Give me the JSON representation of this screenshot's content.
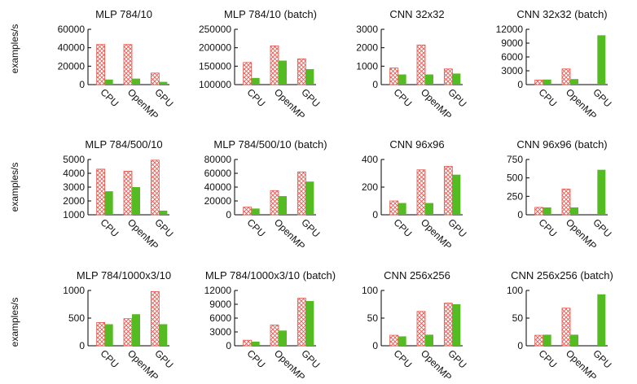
{
  "ylabel": "examples/s",
  "colors": {
    "hatch": "#e8524a",
    "solid": "#55bb22"
  },
  "chart_data": [
    {
      "type": "bar",
      "title": "MLP 784/10",
      "categories": [
        "CPU",
        "OpenMP",
        "GPU"
      ],
      "ylim": [
        0,
        60000
      ],
      "yticks": [
        "60000",
        "40000",
        "20000",
        "0"
      ],
      "yticks_values": [
        60000,
        40000,
        20000,
        0
      ],
      "series": [
        {
          "values": [
            43500,
            43500,
            12500
          ]
        },
        {
          "values": [
            5500,
            6500,
            3000
          ]
        }
      ]
    },
    {
      "type": "bar",
      "title": "MLP 784/10 (batch)",
      "categories": [
        "CPU",
        "OpenMP",
        "GPU"
      ],
      "ylim": [
        100000,
        250000
      ],
      "yticks": [
        "250000",
        "200000",
        "150000",
        "100000"
      ],
      "yticks_values": [
        250000,
        200000,
        150000,
        100000
      ],
      "series": [
        {
          "values": [
            160000,
            205000,
            170000
          ]
        },
        {
          "values": [
            118000,
            165000,
            142000
          ]
        }
      ]
    },
    {
      "type": "bar",
      "title": "CNN 32x32",
      "categories": [
        "CPU",
        "OpenMP",
        "GPU"
      ],
      "ylim": [
        0,
        3000
      ],
      "yticks": [
        "3000",
        "2000",
        "1000",
        "0"
      ],
      "yticks_values": [
        3000,
        2000,
        1000,
        0
      ],
      "series": [
        {
          "values": [
            900,
            2150,
            850
          ]
        },
        {
          "values": [
            550,
            550,
            600
          ]
        }
      ]
    },
    {
      "type": "bar",
      "title": "CNN 32x32 (batch)",
      "categories": [
        "CPU",
        "OpenMP",
        "GPU"
      ],
      "ylim": [
        0,
        12000
      ],
      "yticks": [
        "12000",
        "9000",
        "6000",
        "3000",
        "0"
      ],
      "yticks_values": [
        12000,
        9000,
        6000,
        3000,
        0
      ],
      "series": [
        {
          "values": [
            1000,
            3400,
            0
          ]
        },
        {
          "values": [
            1100,
            1200,
            10700
          ]
        }
      ]
    },
    {
      "type": "bar",
      "title": "MLP 784/500/10",
      "categories": [
        "CPU",
        "OpenMP",
        "GPU"
      ],
      "ylim": [
        1000,
        5000
      ],
      "yticks": [
        "5000",
        "4000",
        "3000",
        "2000",
        "1000"
      ],
      "yticks_values": [
        5000,
        4000,
        3000,
        2000,
        1000
      ],
      "series": [
        {
          "values": [
            4300,
            4150,
            4950
          ]
        },
        {
          "values": [
            2700,
            3000,
            1300
          ]
        }
      ]
    },
    {
      "type": "bar",
      "title": "MLP 784/500/10 (batch)",
      "categories": [
        "CPU",
        "OpenMP",
        "GPU"
      ],
      "ylim": [
        0,
        80000
      ],
      "yticks": [
        "80000",
        "60000",
        "40000",
        "20000",
        "0"
      ],
      "yticks_values": [
        80000,
        60000,
        40000,
        20000,
        0
      ],
      "series": [
        {
          "values": [
            11000,
            35000,
            62000
          ]
        },
        {
          "values": [
            9000,
            27000,
            48000
          ]
        }
      ]
    },
    {
      "type": "bar",
      "title": "CNN 96x96",
      "categories": [
        "CPU",
        "OpenMP",
        "GPU"
      ],
      "ylim": [
        0,
        400
      ],
      "yticks": [
        "400",
        "200",
        "0"
      ],
      "yticks_values": [
        400,
        200,
        0
      ],
      "series": [
        {
          "values": [
            100,
            325,
            350
          ]
        },
        {
          "values": [
            85,
            85,
            290
          ]
        }
      ]
    },
    {
      "type": "bar",
      "title": "CNN 96x96 (batch)",
      "categories": [
        "CPU",
        "OpenMP",
        "GPU"
      ],
      "ylim": [
        0,
        750
      ],
      "yticks": [
        "750",
        "500",
        "250",
        "0"
      ],
      "yticks_values": [
        750,
        500,
        250,
        0
      ],
      "series": [
        {
          "values": [
            100,
            350,
            0
          ]
        },
        {
          "values": [
            100,
            100,
            610
          ]
        }
      ]
    },
    {
      "type": "bar",
      "title": "MLP 784/1000x3/10",
      "categories": [
        "CPU",
        "OpenMP",
        "GPU"
      ],
      "ylim": [
        0,
        1000
      ],
      "yticks": [
        "1000",
        "500",
        "0"
      ],
      "yticks_values": [
        1000,
        500,
        0
      ],
      "series": [
        {
          "values": [
            420,
            490,
            980
          ]
        },
        {
          "values": [
            390,
            570,
            390
          ]
        }
      ]
    },
    {
      "type": "bar",
      "title": "MLP 784/1000x3/10 (batch)",
      "categories": [
        "CPU",
        "OpenMP",
        "GPU"
      ],
      "ylim": [
        0,
        12000
      ],
      "yticks": [
        "12000",
        "9000",
        "6000",
        "3000",
        "0"
      ],
      "yticks_values": [
        12000,
        9000,
        6000,
        3000,
        0
      ],
      "series": [
        {
          "values": [
            1200,
            4500,
            10300
          ]
        },
        {
          "values": [
            900,
            3300,
            9700
          ]
        }
      ]
    },
    {
      "type": "bar",
      "title": "CNN 256x256",
      "categories": [
        "CPU",
        "OpenMP",
        "GPU"
      ],
      "ylim": [
        0,
        100
      ],
      "yticks": [
        "100",
        "50",
        "0"
      ],
      "yticks_values": [
        100,
        50,
        0
      ],
      "series": [
        {
          "values": [
            19,
            62,
            77
          ]
        },
        {
          "values": [
            17,
            20,
            75
          ]
        }
      ]
    },
    {
      "type": "bar",
      "title": "CNN 256x256 (batch)",
      "categories": [
        "CPU",
        "OpenMP",
        "GPU"
      ],
      "ylim": [
        0,
        100
      ],
      "yticks": [
        "100",
        "50",
        "0"
      ],
      "yticks_values": [
        100,
        50,
        0
      ],
      "series": [
        {
          "values": [
            19,
            68,
            0
          ]
        },
        {
          "values": [
            20,
            20,
            93
          ]
        }
      ]
    }
  ]
}
